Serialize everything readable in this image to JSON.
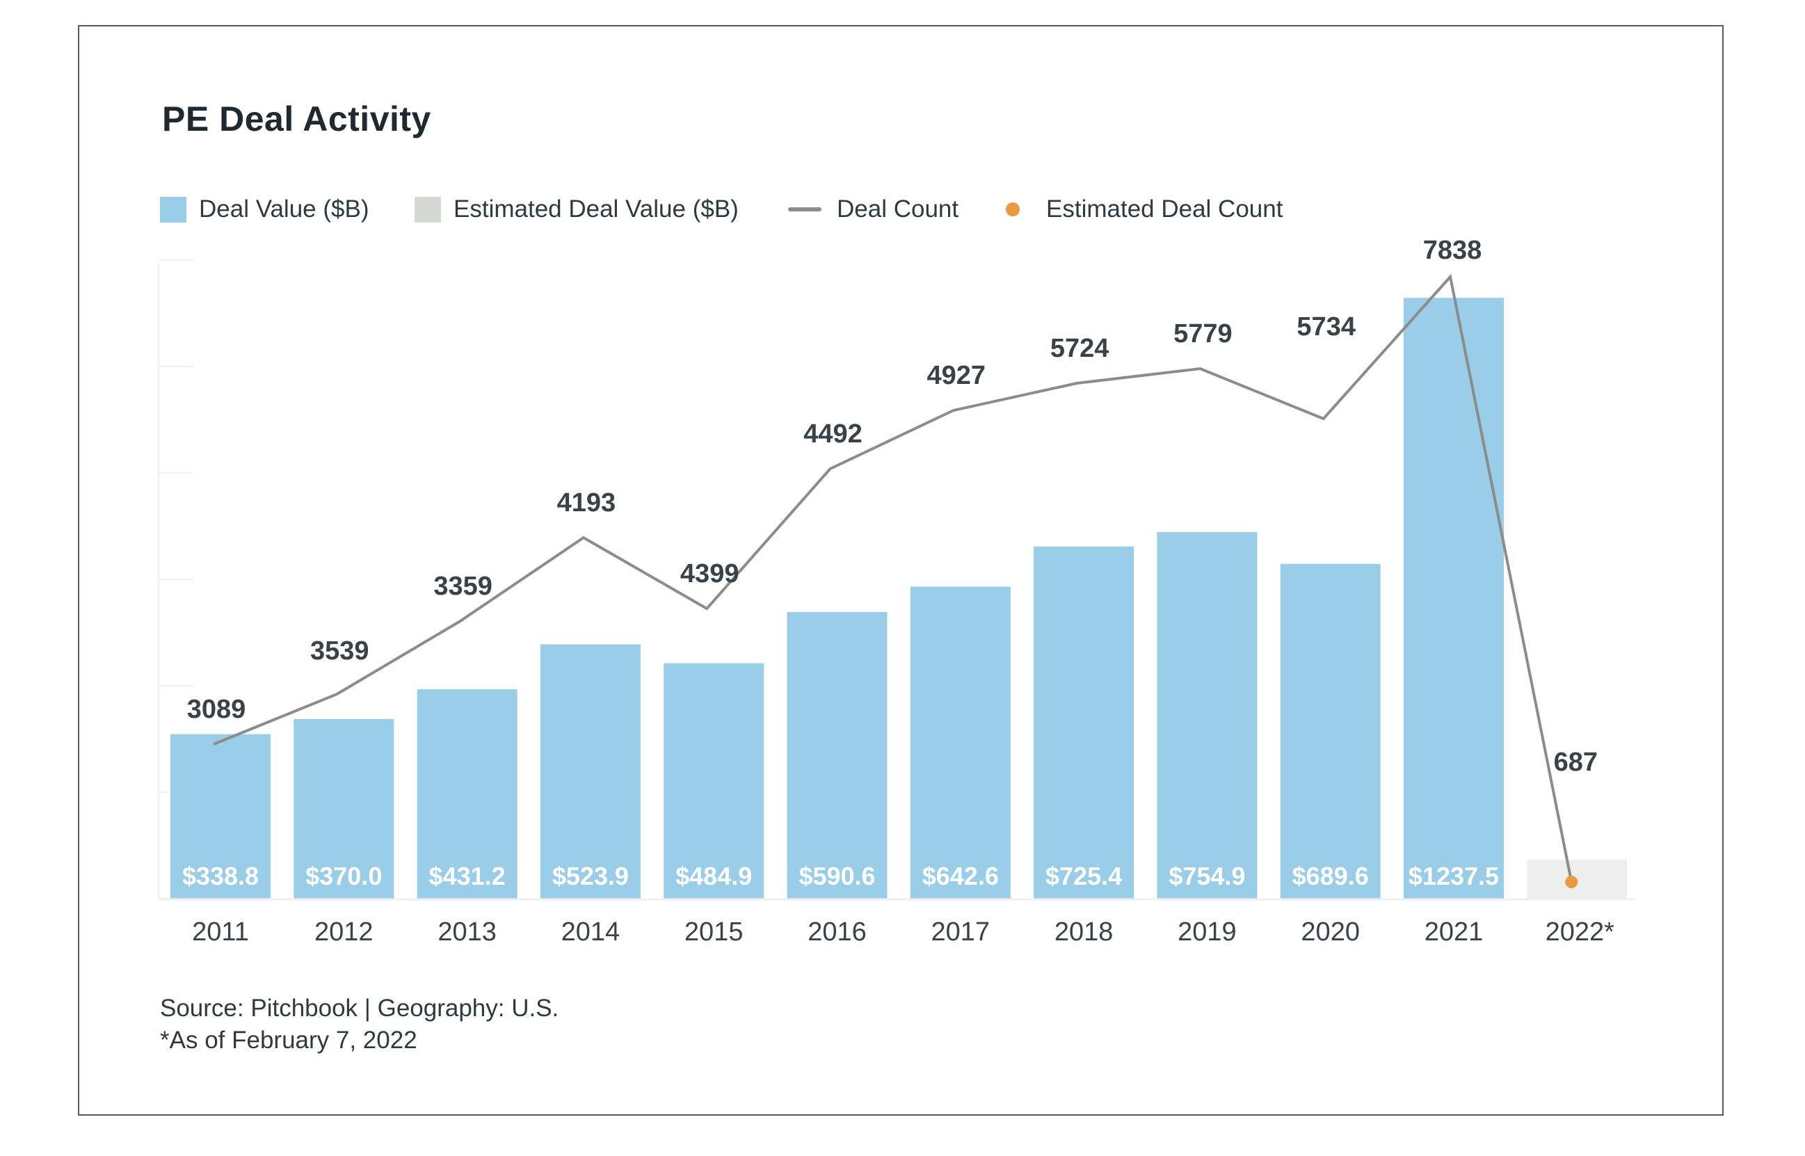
{
  "title": "PE Deal Activity",
  "legend": {
    "deal_value": "Deal Value ($B)",
    "estimated_deal_value": "Estimated Deal Value ($B)",
    "deal_count": "Deal Count",
    "estimated_deal_count": "Estimated Deal Count"
  },
  "colors": {
    "deal_value": "#99cde8",
    "estimated_deal_value": "#eeeeee",
    "estimated_legend_swatch": "#d5d8d3",
    "deal_count": "#8a8c8e",
    "estimated_deal_count": "#e89a3c"
  },
  "footnotes": {
    "source": "Source: Pitchbook | Geography: U.S.",
    "as_of": "*As of February 7, 2022"
  },
  "chart_data": {
    "type": "bar",
    "title": "PE Deal Activity",
    "categories": [
      "2011",
      "2012",
      "2013",
      "2014",
      "2015",
      "2016",
      "2017",
      "2018",
      "2019",
      "2020",
      "2021",
      "2022*"
    ],
    "series": [
      {
        "name": "Deal Value ($B)",
        "type": "bar",
        "values": [
          338.8,
          370.0,
          431.2,
          523.9,
          484.9,
          590.6,
          642.6,
          725.4,
          754.9,
          689.6,
          1237.5,
          null
        ],
        "labels": [
          "$338.8",
          "$370.0",
          "$431.2",
          "$523.9",
          "$484.9",
          "$590.6",
          "$642.6",
          "$725.4",
          "$754.9",
          "$689.6",
          "$1237.5",
          ""
        ]
      },
      {
        "name": "Estimated Deal Value ($B)",
        "type": "bar",
        "values": [
          null,
          null,
          null,
          null,
          null,
          null,
          null,
          null,
          null,
          null,
          null,
          80
        ]
      },
      {
        "name": "Deal Count",
        "type": "line",
        "values": [
          3089,
          3539,
          3359,
          4193,
          4399,
          4492,
          4927,
          5724,
          5779,
          5734,
          7838,
          687
        ],
        "labels": [
          "3089",
          "3539",
          "3359",
          "4193",
          "4399",
          "4492",
          "4927",
          "5724",
          "5779",
          "5734",
          "7838",
          "687"
        ]
      },
      {
        "name": "Estimated Deal Count",
        "type": "point",
        "index": 11,
        "value": 687
      }
    ],
    "value_axis": {
      "ylim": [
        0,
        1200
      ]
    },
    "count_positions": [
      3700,
      4900,
      6650,
      8650,
      6950,
      10300,
      11700,
      12350,
      12700,
      11500,
      14900,
      687
    ],
    "count_axis": {
      "ylim": [
        0,
        15000
      ]
    },
    "legend_position": "top-left",
    "grid": false
  }
}
